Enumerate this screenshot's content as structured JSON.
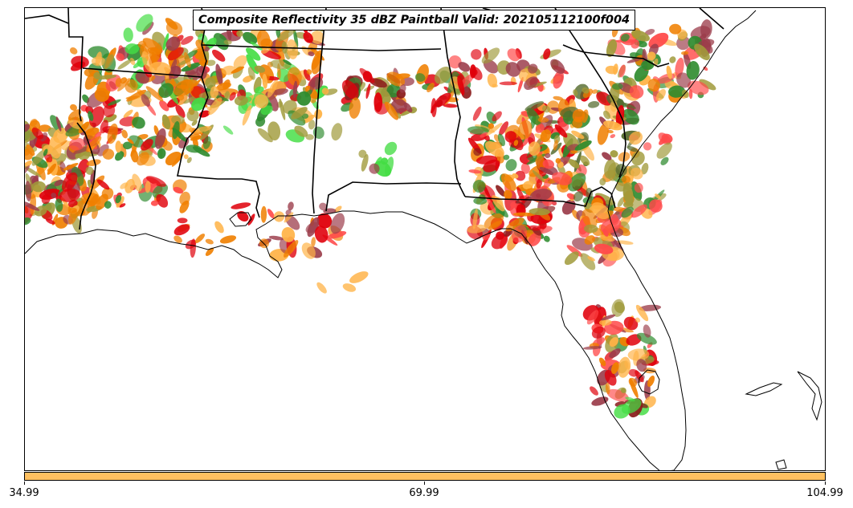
{
  "title": "Composite Reflectivity 35 dBZ Paintball Valid: 202105112100f004",
  "colorbar": {
    "color": "#ffc060",
    "ticks": [
      "34.99",
      "69.99",
      "104.99"
    ]
  },
  "paint_colors": {
    "orange": "#f07f00",
    "light_orange": "#ffb347",
    "red": "#e0000a",
    "pink_red": "#ff4a4a",
    "dark_red": "#8a1a1a",
    "maroon": "#9b3c4a",
    "green": "#2e8b2e",
    "light_green": "#44dd44",
    "olive": "#a09a3a",
    "dark_olive": "#556b2f"
  }
}
